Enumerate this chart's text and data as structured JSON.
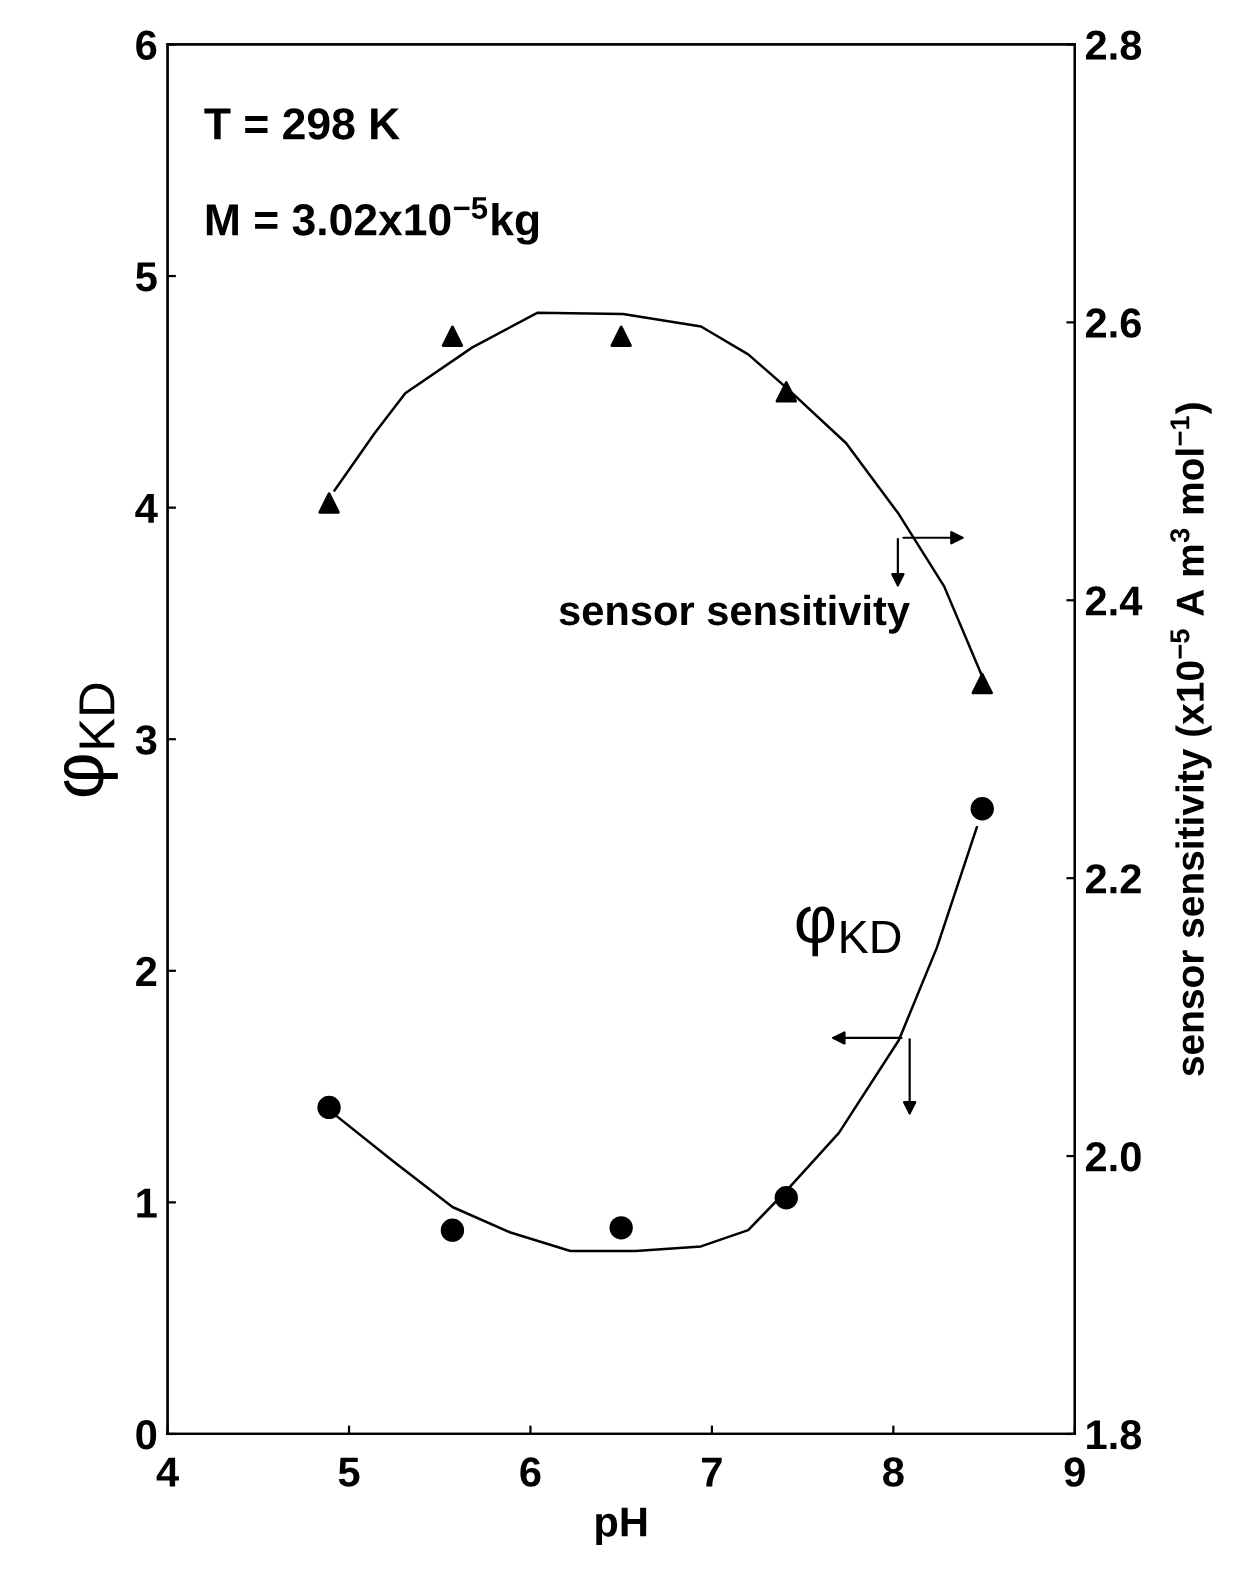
{
  "chart_data": {
    "type": "scatter",
    "xlabel": "pH",
    "ylabel": "φ$_{KD}$",
    "y2label": "sensor sensitivity (x10$^{−5}$ A m$^{3}$ mol$^{−1}$)",
    "annotations": [
      "T = 298 K",
      "M = 3.02x10$^{−5}$kg"
    ],
    "xlim": [
      4,
      9
    ],
    "xticks": [
      4,
      5,
      6,
      7,
      8,
      9
    ],
    "ylim": [
      0,
      6
    ],
    "yticks": [
      0,
      1,
      2,
      3,
      4,
      5,
      6
    ],
    "y2lim": [
      1.8,
      2.8
    ],
    "y2ticks": [
      {
        "value": 1.8,
        "label": "1.8"
      },
      {
        "value": 2.0,
        "label": "2.0"
      },
      {
        "value": 2.2,
        "label": "2.2"
      },
      {
        "value": 2.4,
        "label": "2.4"
      },
      {
        "value": 2.6,
        "label": "2.6"
      },
      {
        "value": 2.8,
        "label": "2.8"
      }
    ],
    "grid": false,
    "series": [
      {
        "name": "sensor sensitivity",
        "axis": "y2",
        "marker": "triangle",
        "color": "#000000",
        "x": [
          4.89,
          5.57,
          6.5,
          7.41,
          8.49
        ],
        "values": [
          2.47,
          2.59,
          2.59,
          2.55,
          2.34
        ]
      },
      {
        "type": "line",
        "axis": "y2",
        "marker": "none",
        "line_style": "solid",
        "color": "#000000",
        "x": [
          4.92,
          5.14,
          5.31,
          5.68,
          6.04,
          6.51,
          6.94,
          7.2,
          7.41,
          7.74,
          8.03,
          8.28,
          8.5
        ],
        "values": [
          2.479,
          2.52,
          2.549,
          2.582,
          2.607,
          2.606,
          2.597,
          2.577,
          2.553,
          2.513,
          2.462,
          2.41,
          2.342
        ]
      },
      {
        "name": "φ$_{KD}$",
        "marker": "circle",
        "color": "#000000",
        "x": [
          4.89,
          5.57,
          6.5,
          7.41,
          8.49
        ],
        "values": [
          1.41,
          0.88,
          0.89,
          1.02,
          2.7
        ]
      },
      {
        "type": "line",
        "marker": "none",
        "line_style": "solid",
        "color": "#000000",
        "x": [
          4.92,
          5.24,
          5.57,
          5.89,
          6.22,
          6.58,
          6.94,
          7.2,
          7.41,
          7.7,
          8.03,
          8.24,
          8.46
        ],
        "values": [
          1.38,
          1.18,
          0.98,
          0.87,
          0.79,
          0.79,
          0.81,
          0.88,
          1.05,
          1.3,
          1.7,
          2.1,
          2.62
        ]
      }
    ]
  }
}
